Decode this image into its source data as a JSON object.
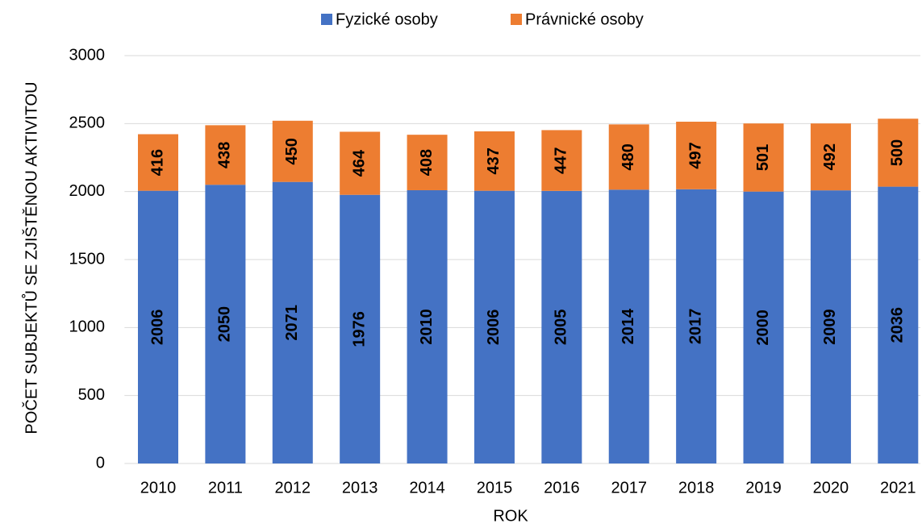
{
  "chart_data": {
    "type": "stacked_bar",
    "categories": [
      "2010",
      "2011",
      "2012",
      "2013",
      "2014",
      "2015",
      "2016",
      "2017",
      "2018",
      "2019",
      "2020",
      "2021"
    ],
    "series": [
      {
        "name": "Fyzické osoby",
        "color": "#4472c4",
        "label_color": "#ffffff",
        "values": [
          2006,
          2050,
          2071,
          1976,
          2010,
          2006,
          2005,
          2014,
          2017,
          2000,
          2009,
          2036
        ]
      },
      {
        "name": "Právnické osoby",
        "color": "#ed7d31",
        "label_color": "#000000",
        "values": [
          416,
          438,
          450,
          464,
          408,
          437,
          447,
          480,
          497,
          501,
          492,
          500
        ]
      }
    ],
    "ylim": [
      0,
      3000
    ],
    "yticks": [
      0,
      500,
      1000,
      1500,
      2000,
      2500,
      3000
    ],
    "xlabel": "ROK",
    "ylabel": "POČET SUBJEKTŮ SE ZJIŠTĚNOU AKTIVITOU",
    "grid": true,
    "legend": "top"
  }
}
